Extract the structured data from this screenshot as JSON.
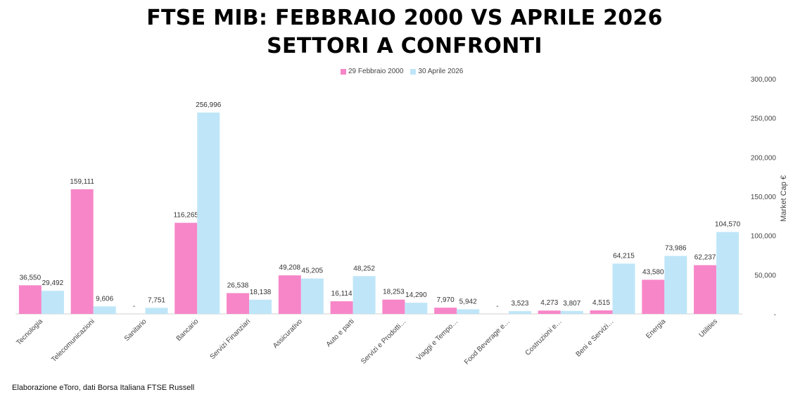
{
  "title_line1": "FTSE MIB: FEBBRAIO 2000 VS APRILE 2026",
  "title_line2": "SETTORI A CONFRONTI",
  "source": "Elaborazione eToro, dati Borsa Italiana FTSE Russell",
  "colors": {
    "series1": "#f786c8",
    "series2": "#bfe6f8"
  },
  "chart_data": {
    "type": "bar",
    "title": "FTSE MIB: FEBBRAIO 2000 VS APRILE 2026 / SETTORI A CONFRONTI",
    "ylabel": "Market Cap €",
    "xlabel": "",
    "ylim": [
      0,
      300000
    ],
    "yticks": [
      "-",
      "50,000",
      "100,000",
      "150,000",
      "200,000",
      "250,000",
      "300,000"
    ],
    "legend_position": "top-center",
    "grid": false,
    "categories": [
      "Tecnologia",
      "Telecomunicazioni",
      "Sanitario",
      "Bancario",
      "Servizi Finanziari",
      "Assicurativo",
      "Auto e parti",
      "Servizi e Prodotti…",
      "Viaggi e Tempo…",
      "Food Beverage e…",
      "Costruzioni e…",
      "Beni e Servizi…",
      "Energia",
      "Utilities"
    ],
    "series": [
      {
        "name": "29 Febbraio 2000",
        "values": [
          36550,
          159111,
          0,
          116265,
          26538,
          49208,
          16114,
          18253,
          7970,
          0,
          4273,
          4515,
          43580,
          62237
        ],
        "labels": [
          "36,550",
          "159,111",
          "-",
          "116,265",
          "26,538",
          "49,208",
          "16,114",
          "18,253",
          "7,970",
          "-",
          "4,273",
          "4,515",
          "43,580",
          "62,237"
        ]
      },
      {
        "name": "30 Aprile 2026",
        "values": [
          29492,
          9606,
          7751,
          256996,
          18138,
          45205,
          48252,
          14290,
          5942,
          3523,
          3807,
          64215,
          73986,
          104570
        ],
        "labels": [
          "29,492",
          "9,606",
          "7,751",
          "256,996",
          "18,138",
          "45,205",
          "48,252",
          "14,290",
          "5,942",
          "3,523",
          "3,807",
          "64,215",
          "73,986",
          "104,570"
        ]
      }
    ]
  }
}
